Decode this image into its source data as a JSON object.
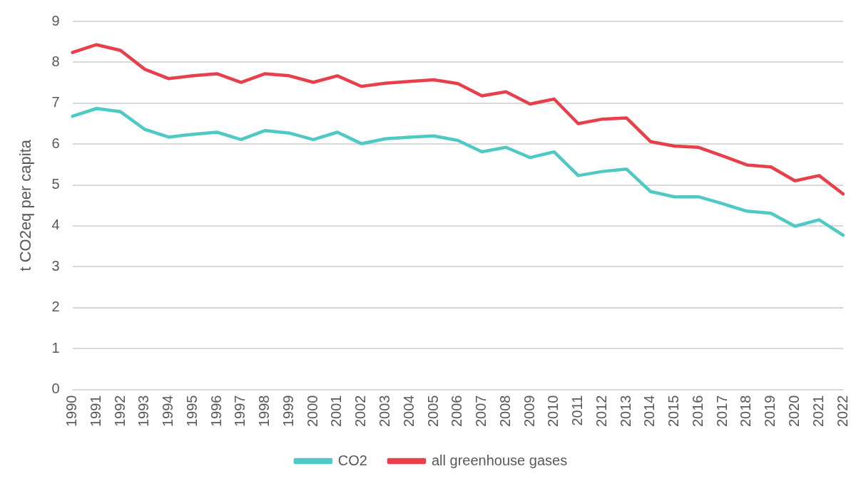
{
  "chart_data": {
    "type": "line",
    "ylabel": "t CO2eq per capita",
    "categories": [
      "1990",
      "1991",
      "1992",
      "1993",
      "1994",
      "1995",
      "1996",
      "1997",
      "1998",
      "1999",
      "2000",
      "2001",
      "2002",
      "2003",
      "2004",
      "2005",
      "2006",
      "2007",
      "2008",
      "2009",
      "2010",
      "2011",
      "2012",
      "2013",
      "2014",
      "2015",
      "2016",
      "2017",
      "2018",
      "2019",
      "2020",
      "2021",
      "2022"
    ],
    "series": [
      {
        "name": "CO2",
        "color": "#4ec9c4",
        "values": [
          6.68,
          6.87,
          6.79,
          6.36,
          6.17,
          6.24,
          6.29,
          6.11,
          6.33,
          6.27,
          6.11,
          6.29,
          6.01,
          6.13,
          6.17,
          6.2,
          6.09,
          5.81,
          5.92,
          5.67,
          5.81,
          5.23,
          5.33,
          5.39,
          4.84,
          4.71,
          4.71,
          4.54,
          4.36,
          4.31,
          3.99,
          4.15,
          3.77
        ]
      },
      {
        "name": "all greenhouse gases",
        "color": "#e8404a",
        "values": [
          8.24,
          8.43,
          8.29,
          7.83,
          7.6,
          7.67,
          7.72,
          7.51,
          7.72,
          7.67,
          7.51,
          7.67,
          7.41,
          7.49,
          7.53,
          7.57,
          7.48,
          7.18,
          7.28,
          6.98,
          7.1,
          6.5,
          6.61,
          6.64,
          6.06,
          5.95,
          5.92,
          5.71,
          5.49,
          5.44,
          5.1,
          5.23,
          4.78
        ]
      }
    ],
    "ylim": [
      0,
      9
    ],
    "yticks": [
      0,
      1,
      2,
      3,
      4,
      5,
      6,
      7,
      8,
      9
    ],
    "grid": "y",
    "legend": "bottom",
    "marker": "none",
    "line_style": "solid"
  }
}
